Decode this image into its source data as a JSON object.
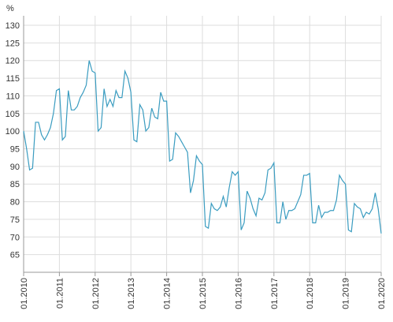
{
  "chart_data": {
    "type": "line",
    "y_label": "%",
    "categories": [
      "01.2010",
      null,
      null,
      null,
      null,
      null,
      null,
      null,
      null,
      null,
      null,
      null,
      "01.2011",
      null,
      null,
      null,
      null,
      null,
      null,
      null,
      null,
      null,
      null,
      null,
      "01.2012",
      null,
      null,
      null,
      null,
      null,
      null,
      null,
      null,
      null,
      null,
      null,
      "01.2013",
      null,
      null,
      null,
      null,
      null,
      null,
      null,
      null,
      null,
      null,
      null,
      "01.2014",
      null,
      null,
      null,
      null,
      null,
      null,
      null,
      null,
      null,
      null,
      null,
      "01.2015",
      null,
      null,
      null,
      null,
      null,
      null,
      null,
      null,
      null,
      null,
      null,
      "01.2016",
      null,
      null,
      null,
      null,
      null,
      null,
      null,
      null,
      null,
      null,
      null,
      "01.2017",
      null,
      null,
      null,
      null,
      null,
      null,
      null,
      null,
      null,
      null,
      null,
      "01.2018",
      null,
      null,
      null,
      null,
      null,
      null,
      null,
      null,
      null,
      null,
      null,
      "01.2019",
      null,
      null,
      null,
      null,
      null,
      null,
      null,
      null,
      null,
      null,
      null,
      "01.2020"
    ],
    "values": [
      100,
      95,
      89,
      89.5,
      102.5,
      102.5,
      99,
      97.5,
      99,
      101,
      105,
      111.5,
      112,
      97.5,
      98.5,
      111.5,
      106,
      106,
      107,
      109.5,
      111,
      113,
      120,
      117,
      116.5,
      100,
      101,
      112,
      107,
      109,
      107,
      111.5,
      109.5,
      109.5,
      117,
      115,
      111,
      97.5,
      97,
      107.5,
      106,
      100,
      101,
      106.5,
      104,
      103.5,
      111,
      108.5,
      108.5,
      91.5,
      92,
      99.5,
      98.5,
      97,
      95.5,
      94,
      82.5,
      86,
      93,
      91.5,
      90.5,
      73,
      72.5,
      79.5,
      78,
      77.5,
      78.5,
      81.5,
      78.5,
      84,
      88.5,
      87.5,
      88.5,
      72,
      74,
      83,
      81,
      78,
      76,
      81,
      80.5,
      82.5,
      89,
      89.5,
      91,
      74,
      74,
      80,
      75,
      77.5,
      77.5,
      78,
      80,
      82,
      87.5,
      87.5,
      88,
      74,
      74,
      79,
      75.5,
      77,
      77,
      77.5,
      77.5,
      80.5,
      87.5,
      86,
      85,
      72,
      71.5,
      79.5,
      78.5,
      78,
      75.5,
      77,
      76.5,
      78,
      82.5,
      78,
      71
    ],
    "color": "#3a9cc0",
    "ylim": [
      60,
      130
    ],
    "yticks": [
      65,
      70,
      75,
      80,
      85,
      90,
      95,
      100,
      105,
      110,
      115,
      120,
      125,
      130
    ],
    "grid": true
  }
}
